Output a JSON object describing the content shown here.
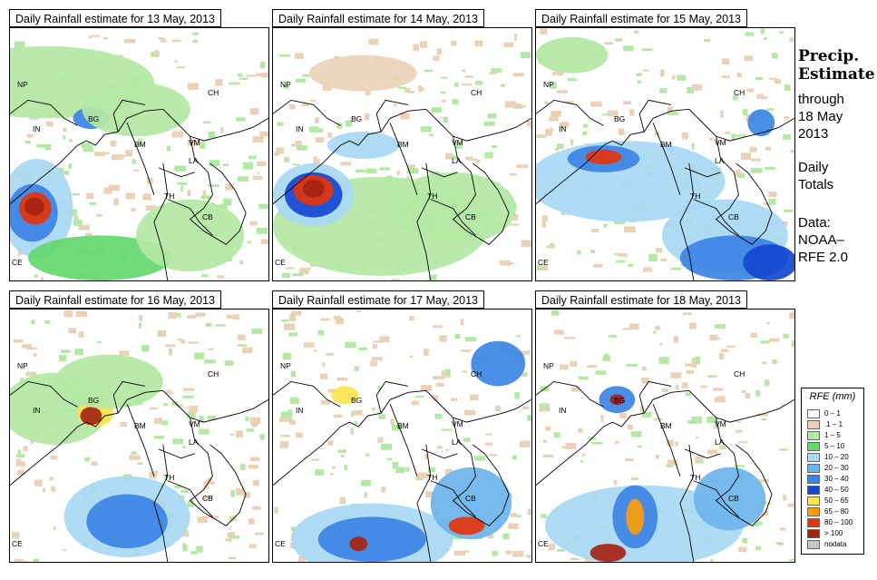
{
  "panels": [
    {
      "title": "Daily Rainfall estimate for  13 May, 2013",
      "labels": {
        "np": "NP",
        "ch": "CH",
        "in": "IN",
        "bg": "BG",
        "bm": "BM",
        "vm": "VM",
        "la": "LA",
        "th": "TH",
        "cb": "CB",
        "ce": "CE"
      }
    },
    {
      "title": "Daily Rainfall estimate for  14 May, 2013",
      "labels": {
        "np": "NP",
        "ch": "CH",
        "in": "IN",
        "bg": "BG",
        "bm": "BM",
        "vm": "VM",
        "la": "LA",
        "th": "TH",
        "cb": "CB",
        "ce": "CE"
      }
    },
    {
      "title": "Daily Rainfall estimate for  15 May, 2013",
      "labels": {
        "np": "NP",
        "ch": "CH",
        "in": "IN",
        "bg": "BG",
        "bm": "BM",
        "vm": "VM",
        "la": "LA",
        "th": "TH",
        "cb": "CB",
        "ce": "CE"
      }
    },
    {
      "title": "Daily Rainfall estimate for  16 May, 2013",
      "labels": {
        "np": "NP",
        "ch": "CH",
        "in": "IN",
        "bg": "BG",
        "bm": "BM",
        "vm": "VM",
        "la": "LA",
        "th": "TH",
        "cb": "CB",
        "ce": "CE"
      }
    },
    {
      "title": "Daily Rainfall estimate for  17 May, 2013",
      "labels": {
        "np": "NP",
        "ch": "CH",
        "in": "IN",
        "bg": "BG",
        "bm": "BM",
        "vm": "VM",
        "la": "LA",
        "th": "TH",
        "cb": "CB",
        "ce": "CE"
      }
    },
    {
      "title": "Daily Rainfall estimate for  18 May, 2013",
      "labels": {
        "np": "NP",
        "ch": "CH",
        "in": "IN",
        "bg": "BG",
        "bm": "BM",
        "vm": "VM",
        "la": "LA",
        "th": "TH",
        "cb": "CB",
        "ce": "CE"
      }
    }
  ],
  "sidebar": {
    "title_line1": "Precip.",
    "title_line2": "Estimate",
    "through": "through",
    "date_line1": "18 May",
    "date_line2": "2013",
    "daily1": "Daily",
    "daily2": "Totals",
    "data1": "Data:",
    "data2": "NOAA–",
    "data3": "RFE 2.0"
  },
  "legend": {
    "title": "RFE (mm)",
    "items": [
      {
        "label": "0 – 1",
        "color": "#ffffff"
      },
      {
        "label": ".1 – 1",
        "color": "#ead2b8"
      },
      {
        "label": "1 – 5",
        "color": "#b4e8a4"
      },
      {
        "label": "5 – 10",
        "color": "#64d86c"
      },
      {
        "label": "10 – 20",
        "color": "#a8d8f4"
      },
      {
        "label": "20 – 30",
        "color": "#6cb4ec"
      },
      {
        "label": "30 – 40",
        "color": "#3c84e4"
      },
      {
        "label": "40 – 50",
        "color": "#1448d0"
      },
      {
        "label": "50 – 65",
        "color": "#fce44c"
      },
      {
        "label": "65 – 80",
        "color": "#fc9c0c"
      },
      {
        "label": "80 – 100",
        "color": "#e4340c"
      },
      {
        "label": "> 100",
        "color": "#a42414"
      },
      {
        "label": "nodata",
        "color": "#c8c8c8"
      }
    ]
  }
}
